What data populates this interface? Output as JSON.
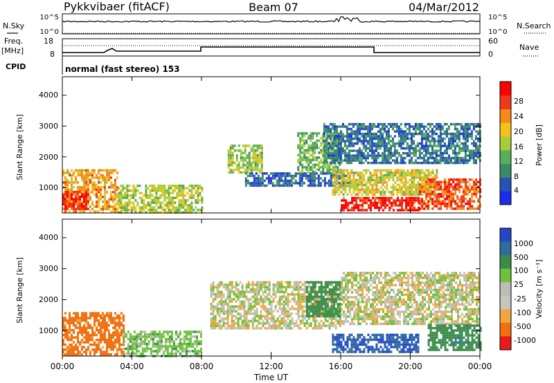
{
  "header": {
    "station": "Pykkvibaer (fitACF)",
    "beam": "Beam 07",
    "date": "04/Mar/2012"
  },
  "top_panels": {
    "nsky_label": "N.Sky",
    "nsky_tick_high": "10^5",
    "nsky_tick_low": "10^0",
    "nsearch_tick_high": "10^5",
    "nsearch_tick_low": "10^0",
    "nsearch_label": "N.Search",
    "freq_label": "Freq.",
    "freq_unit": "[MHz]",
    "freq_ticks": [
      "18",
      "8"
    ],
    "nave_ticks": [
      "60",
      "0"
    ],
    "nave_label": "Nave",
    "cpid_label": "CPID",
    "cpid_value": "normal (fast stereo) 153"
  },
  "x_axis": {
    "label": "Time UT",
    "ticks": [
      "00:00",
      "04:00",
      "08:00",
      "12:00",
      "16:00",
      "20:00",
      "00:00"
    ]
  },
  "power_panel": {
    "ylabel": "Slant Range [km]",
    "yticks": [
      "1000",
      "2000",
      "3000",
      "4000"
    ],
    "colorbar_label": "Power [dB]",
    "colorbar_ticks": [
      "4",
      "8",
      "12",
      "16",
      "20",
      "24",
      "28"
    ]
  },
  "velocity_panel": {
    "ylabel": "Slant Range [km]",
    "yticks": [
      "1000",
      "2000",
      "3000",
      "4000"
    ],
    "colorbar_label": "Velocity [m s⁻¹]",
    "colorbar_ticks": [
      "1000",
      "500",
      "100",
      "25",
      "-25",
      "-100",
      "-500",
      "-1000"
    ]
  },
  "colors": {
    "power_scale": [
      "#1a2de8",
      "#2752b8",
      "#3a8a6a",
      "#55b05a",
      "#a8cc3a",
      "#f5c21a",
      "#f58a1a",
      "#ee3a1a",
      "#ff0000"
    ],
    "velocity_scale": [
      "#2446c8",
      "#2f6c9c",
      "#3b8c4a",
      "#6cc23a",
      "#bdbdb5",
      "#c6c6bd",
      "#f3a640",
      "#f07010",
      "#e81a1a"
    ]
  },
  "chart_data": [
    {
      "type": "heatmap",
      "title": "Pykkvibaer (fitACF)  Beam 07  04/Mar/2012",
      "xlabel": "Time UT",
      "ylabel": "Slant Range [km]",
      "x_ticks": [
        "00:00",
        "04:00",
        "08:00",
        "12:00",
        "16:00",
        "20:00",
        "00:00"
      ],
      "xlim_hours": [
        0,
        24
      ],
      "ylim": [
        180,
        4600
      ],
      "value_label": "Power [dB]",
      "value_range": [
        0,
        30
      ],
      "regions": [
        {
          "t0": 0.0,
          "t1": 3.2,
          "r0": 200,
          "r1": 1600,
          "value": 20
        },
        {
          "t0": 0.0,
          "t1": 1.5,
          "r0": 300,
          "r1": 900,
          "value": 26
        },
        {
          "t0": 3.2,
          "t1": 8.0,
          "r0": 200,
          "r1": 1100,
          "value": 15
        },
        {
          "t0": 9.5,
          "t1": 11.5,
          "r0": 1500,
          "r1": 2400,
          "value": 14
        },
        {
          "t0": 10.5,
          "t1": 16.5,
          "r0": 1100,
          "r1": 1500,
          "value": 6
        },
        {
          "t0": 13.5,
          "t1": 16.0,
          "r0": 1500,
          "r1": 2800,
          "value": 12
        },
        {
          "t0": 15.5,
          "t1": 21.5,
          "r0": 800,
          "r1": 1600,
          "value": 17
        },
        {
          "t0": 16.0,
          "t1": 20.5,
          "r0": 300,
          "r1": 700,
          "value": 27
        },
        {
          "t0": 20.5,
          "t1": 24.0,
          "r0": 300,
          "r1": 1300,
          "value": 24
        },
        {
          "t0": 15.0,
          "t1": 24.0,
          "r0": 1800,
          "r1": 3100,
          "value": 7
        }
      ]
    },
    {
      "type": "heatmap",
      "xlabel": "Time UT",
      "ylabel": "Slant Range [km]",
      "x_ticks": [
        "00:00",
        "04:00",
        "08:00",
        "12:00",
        "16:00",
        "20:00",
        "00:00"
      ],
      "xlim_hours": [
        0,
        24
      ],
      "ylim": [
        180,
        4600
      ],
      "value_label": "Velocity [m s-1]",
      "value_range": [
        -1000,
        1000
      ],
      "regions": [
        {
          "t0": 0.0,
          "t1": 3.5,
          "r0": 200,
          "r1": 1600,
          "value": -150
        },
        {
          "t0": 3.5,
          "t1": 8.0,
          "r0": 200,
          "r1": 1000,
          "value": 60
        },
        {
          "t0": 8.5,
          "t1": 16.0,
          "r0": 1100,
          "r1": 2600,
          "value": 0
        },
        {
          "t0": 14.0,
          "t1": 16.0,
          "r0": 1500,
          "r1": 2600,
          "value": 200
        },
        {
          "t0": 15.5,
          "t1": 20.5,
          "r0": 300,
          "r1": 900,
          "value": 600
        },
        {
          "t0": 16.0,
          "t1": 24.0,
          "r0": 1200,
          "r1": 2900,
          "value": 0
        },
        {
          "t0": 21.0,
          "t1": 24.0,
          "r0": 400,
          "r1": 1200,
          "value": 250
        }
      ]
    }
  ]
}
